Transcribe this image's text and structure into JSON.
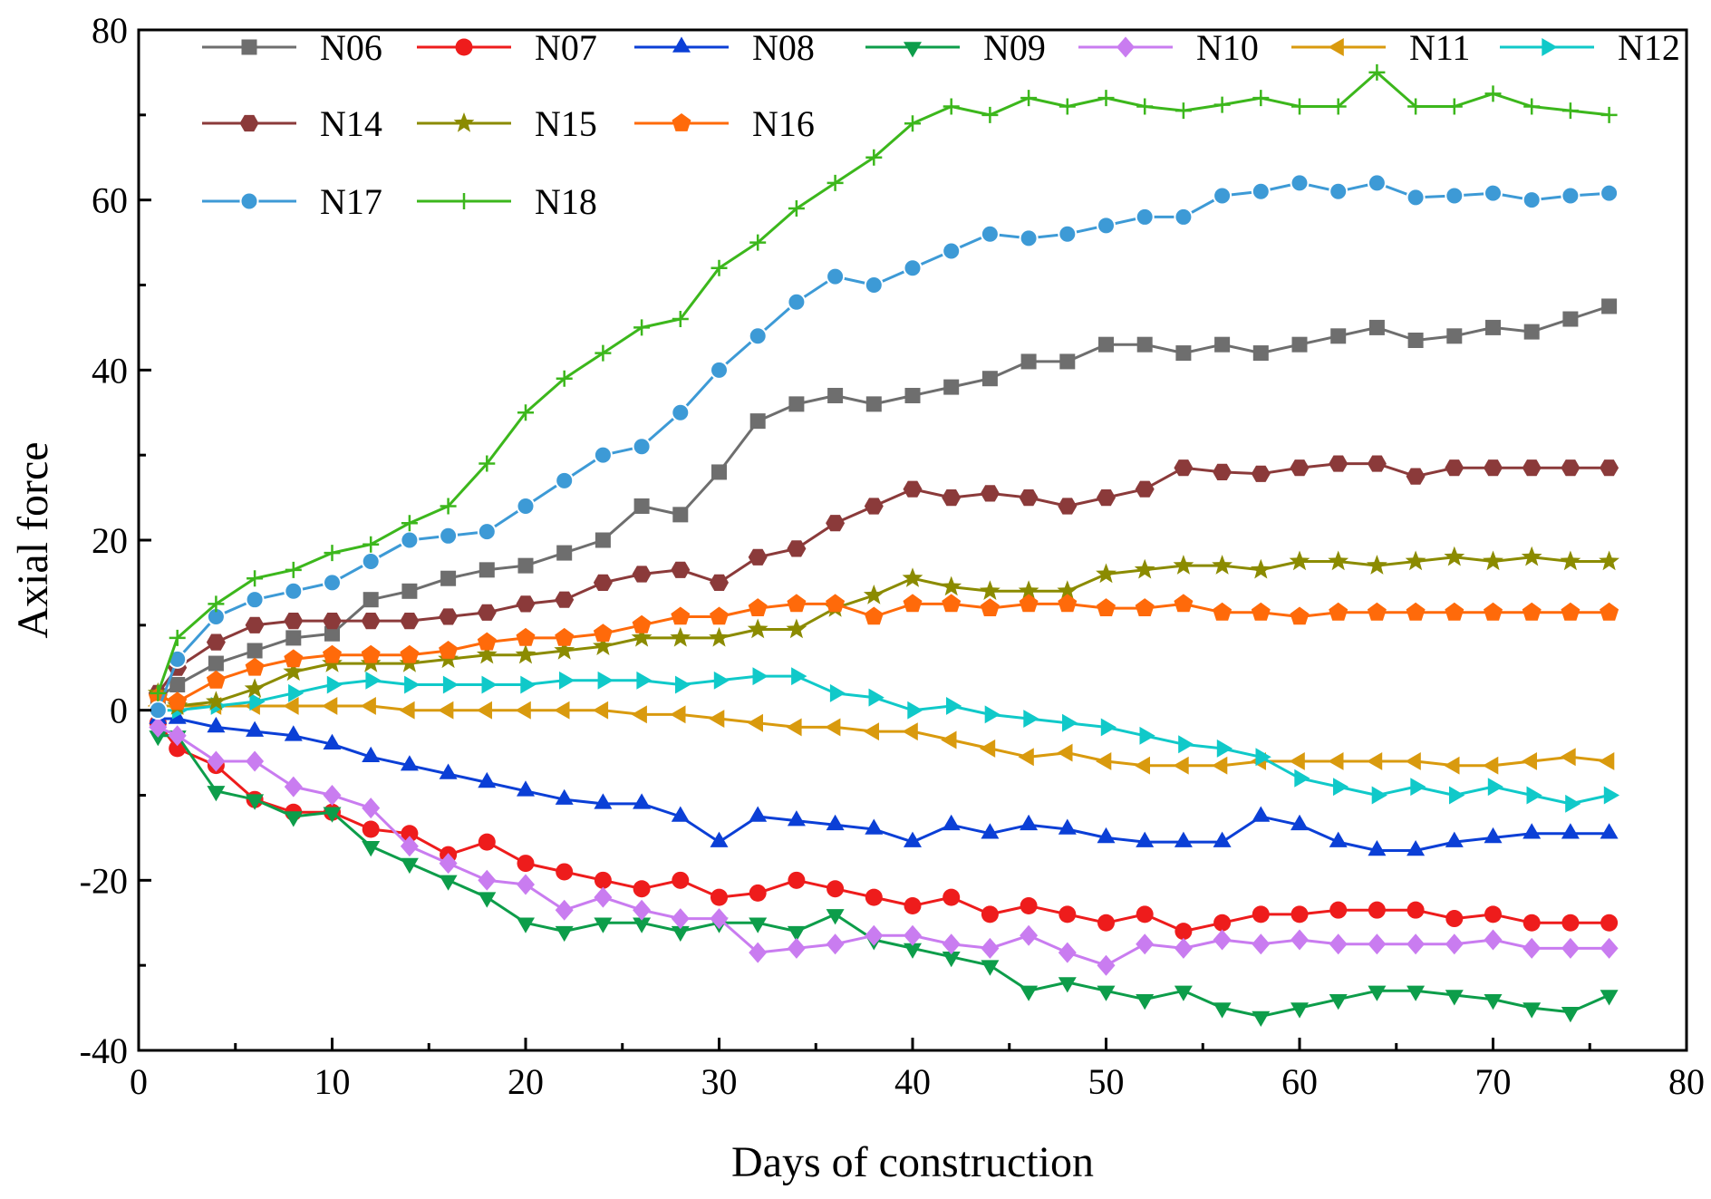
{
  "chart_data": {
    "type": "line",
    "xlabel": "Days of construction",
    "ylabel": "Axial force",
    "xlim": [
      0,
      80
    ],
    "ylim": [
      -40,
      80
    ],
    "xticks": [
      0,
      10,
      20,
      30,
      40,
      50,
      60,
      70,
      80
    ],
    "yticks": [
      -40,
      -20,
      0,
      20,
      40,
      60,
      80
    ],
    "grid": false,
    "legend_position": "top-left",
    "x": [
      1,
      2,
      4,
      6,
      8,
      10,
      12,
      14,
      16,
      18,
      20,
      22,
      24,
      26,
      28,
      30,
      32,
      34,
      36,
      38,
      40,
      42,
      44,
      46,
      48,
      50,
      52,
      54,
      56,
      58,
      60,
      62,
      64,
      66,
      68,
      70,
      72,
      74,
      76
    ],
    "series": [
      {
        "name": "N06",
        "color": "#6e6e6e",
        "marker": "square",
        "values": [
          1.5,
          3,
          5.5,
          7,
          8.5,
          9,
          13,
          14,
          15.5,
          16.5,
          17,
          18.5,
          20,
          24,
          23,
          28,
          34,
          36,
          37,
          36,
          37,
          38,
          39,
          41,
          41,
          43,
          43,
          42,
          43,
          42,
          43,
          44,
          45,
          43.5,
          44,
          45,
          44.5,
          46,
          47.5
        ]
      },
      {
        "name": "N07",
        "color": "#ee1c1c",
        "marker": "circle",
        "values": [
          -1.5,
          -4.5,
          -6.5,
          -10.5,
          -12,
          -12,
          -14,
          -14.5,
          -17,
          -15.5,
          -18,
          -19,
          -20,
          -21,
          -20,
          -22,
          -21.5,
          -20,
          -21,
          -22,
          -23,
          -22,
          -24,
          -23,
          -24,
          -25,
          -24,
          -26,
          -25,
          -24,
          -24,
          -23.5,
          -23.5,
          -23.5,
          -24.5,
          -24,
          -25,
          -25,
          -25
        ]
      },
      {
        "name": "N08",
        "color": "#0b3fd6",
        "marker": "triangle-up",
        "values": [
          -1,
          -1,
          -2,
          -2.5,
          -3,
          -4,
          -5.5,
          -6.5,
          -7.5,
          -8.5,
          -9.5,
          -10.5,
          -11,
          -11,
          -12.5,
          -15.5,
          -12.5,
          -13,
          -13.5,
          -14,
          -15.5,
          -13.5,
          -14.5,
          -13.5,
          -14,
          -15,
          -15.5,
          -15.5,
          -15.5,
          -12.5,
          -13.5,
          -15.5,
          -16.5,
          -16.5,
          -15.5,
          -15,
          -14.5,
          -14.5,
          -14.5
        ]
      },
      {
        "name": "N09",
        "color": "#0d9d4a",
        "marker": "triangle-down",
        "values": [
          -3,
          -3,
          -9.5,
          -10.5,
          -12.5,
          -12,
          -16,
          -18,
          -20,
          -22,
          -25,
          -26,
          -25,
          -25,
          -26,
          -25,
          -25,
          -26,
          -24,
          -27,
          -28,
          -29,
          -30,
          -33,
          -32,
          -33,
          -34,
          -33,
          -35,
          -36,
          -35,
          -34,
          -33,
          -33,
          -33.5,
          -34,
          -35,
          -35.5,
          -33.5
        ]
      },
      {
        "name": "N10",
        "color": "#c97cf0",
        "marker": "diamond",
        "values": [
          -2,
          -3,
          -6,
          -6,
          -9,
          -10,
          -11.5,
          -16,
          -18,
          -20,
          -20.5,
          -23.5,
          -22,
          -23.5,
          -24.5,
          -24.5,
          -28.5,
          -28,
          -27.5,
          -26.5,
          -26.5,
          -27.5,
          -28,
          -26.5,
          -28.5,
          -30,
          -27.5,
          -28,
          -27,
          -27.5,
          -27,
          -27.5,
          -27.5,
          -27.5,
          -27.5,
          -27,
          -28,
          -28,
          -28
        ]
      },
      {
        "name": "N11",
        "color": "#d99a0e",
        "marker": "triangle-left",
        "values": [
          0.5,
          0.5,
          0.5,
          0.5,
          0.5,
          0.5,
          0.5,
          0,
          0,
          0,
          0,
          0,
          0,
          -0.5,
          -0.5,
          -1,
          -1.5,
          -2,
          -2,
          -2.5,
          -2.5,
          -3.5,
          -4.5,
          -5.5,
          -5,
          -6,
          -6.5,
          -6.5,
          -6.5,
          -6,
          -6,
          -6,
          -6,
          -6,
          -6.5,
          -6.5,
          -6,
          -5.5,
          -6
        ]
      },
      {
        "name": "N12",
        "color": "#10c9c9",
        "marker": "triangle-right",
        "values": [
          0,
          0,
          0.5,
          1,
          2,
          3,
          3.5,
          3,
          3,
          3,
          3,
          3.5,
          3.5,
          3.5,
          3,
          3.5,
          4,
          4,
          2,
          1.5,
          0,
          0.5,
          -0.5,
          -1,
          -1.5,
          -2,
          -3,
          -4,
          -4.5,
          -5.5,
          -8,
          -9,
          -10,
          -9,
          -10,
          -9,
          -10,
          -11,
          -10
        ]
      },
      {
        "name": "N14",
        "color": "#8b3a3a",
        "marker": "hexagon",
        "values": [
          2,
          5,
          8,
          10,
          10.5,
          10.5,
          10.5,
          10.5,
          11,
          11.5,
          12.5,
          13,
          15,
          16,
          16.5,
          15,
          18,
          19,
          22,
          24,
          26,
          25,
          25.5,
          25,
          24,
          25,
          26,
          28.5,
          28,
          27.8,
          28.5,
          29,
          29,
          27.5,
          28.5,
          28.5,
          28.5,
          28.5,
          28.5
        ]
      },
      {
        "name": "N15",
        "color": "#8b8b00",
        "marker": "star",
        "values": [
          2,
          0.5,
          1,
          2.5,
          4.5,
          5.5,
          5.5,
          5.5,
          6,
          6.5,
          6.5,
          7,
          7.5,
          8.5,
          8.5,
          8.5,
          9.5,
          9.5,
          12,
          13.5,
          15.5,
          14.5,
          14,
          14,
          14,
          16,
          16.5,
          17,
          17,
          16.5,
          17.5,
          17.5,
          17,
          17.5,
          18,
          17.5,
          18,
          17.5,
          17.5
        ]
      },
      {
        "name": "N16",
        "color": "#ff6a0a",
        "marker": "pentagon",
        "values": [
          1.5,
          1,
          3.5,
          5,
          6,
          6.5,
          6.5,
          6.5,
          7,
          8,
          8.5,
          8.5,
          9,
          10,
          11,
          11,
          12,
          12.5,
          12.5,
          11,
          12.5,
          12.5,
          12,
          12.5,
          12.5,
          12,
          12,
          12.5,
          11.5,
          11.5,
          11,
          11.5,
          11.5,
          11.5,
          11.5,
          11.5,
          11.5,
          11.5,
          11.5
        ]
      },
      {
        "name": "N17",
        "color": "#3d9ad6",
        "marker": "sphere",
        "values": [
          0,
          6,
          11,
          13,
          14,
          15,
          17.5,
          20,
          20.5,
          21,
          24,
          27,
          30,
          31,
          35,
          40,
          44,
          48,
          51,
          50,
          52,
          54,
          56,
          55.5,
          56,
          57,
          58,
          58,
          60.5,
          61,
          62,
          61,
          62,
          60.3,
          60.5,
          60.8,
          60,
          60.5,
          60.8
        ]
      },
      {
        "name": "N18",
        "color": "#3cb71c",
        "marker": "plus",
        "values": [
          2,
          8.5,
          12.5,
          15.5,
          16.5,
          18.5,
          19.5,
          22,
          24,
          29,
          35,
          39,
          42,
          45,
          46,
          52,
          55,
          59,
          62,
          65,
          69,
          71,
          70,
          72,
          71,
          72,
          71,
          70.5,
          71.2,
          72,
          71,
          71,
          75,
          71,
          71,
          72.5,
          71,
          70.5,
          70
        ]
      }
    ]
  }
}
